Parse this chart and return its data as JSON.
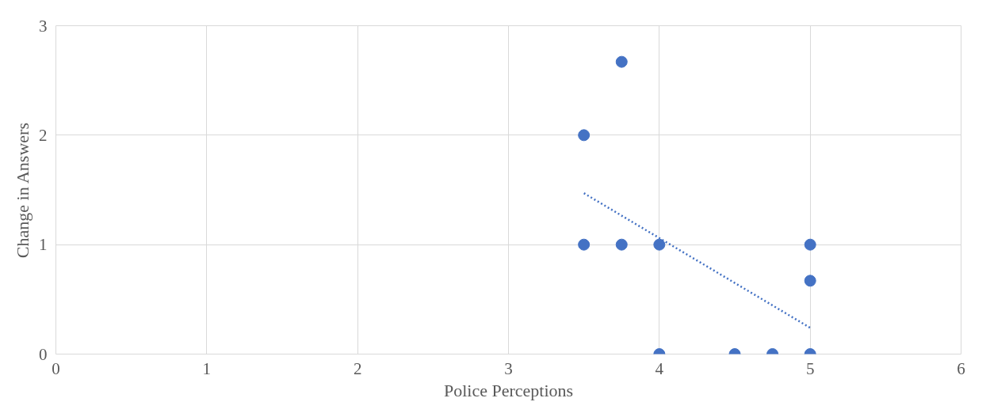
{
  "chart_data": {
    "type": "scatter",
    "xlabel": "Police Perceptions",
    "ylabel": "Change in Answers",
    "xlim": [
      0,
      6
    ],
    "xticks": [
      0,
      1,
      2,
      3,
      4,
      5,
      6
    ],
    "ylim": [
      0,
      3
    ],
    "yticks": [
      0,
      1,
      2,
      3
    ],
    "grid": true,
    "marker": "circle",
    "series": [
      {
        "color": "#4472c4",
        "x": [
          3.5,
          3.75,
          3.5,
          3.75,
          4,
          4,
          4.5,
          4.75,
          5,
          5,
          5
        ],
        "values": [
          2,
          2.67,
          1,
          1,
          1,
          0,
          0,
          0,
          0,
          1,
          0.67
        ]
      },
      {
        "type": "line",
        "color": "#4472c4",
        "line_style": "dotted",
        "marker": "none",
        "x": [
          3.5,
          5
        ],
        "values": [
          1.47,
          0.24
        ]
      }
    ]
  }
}
